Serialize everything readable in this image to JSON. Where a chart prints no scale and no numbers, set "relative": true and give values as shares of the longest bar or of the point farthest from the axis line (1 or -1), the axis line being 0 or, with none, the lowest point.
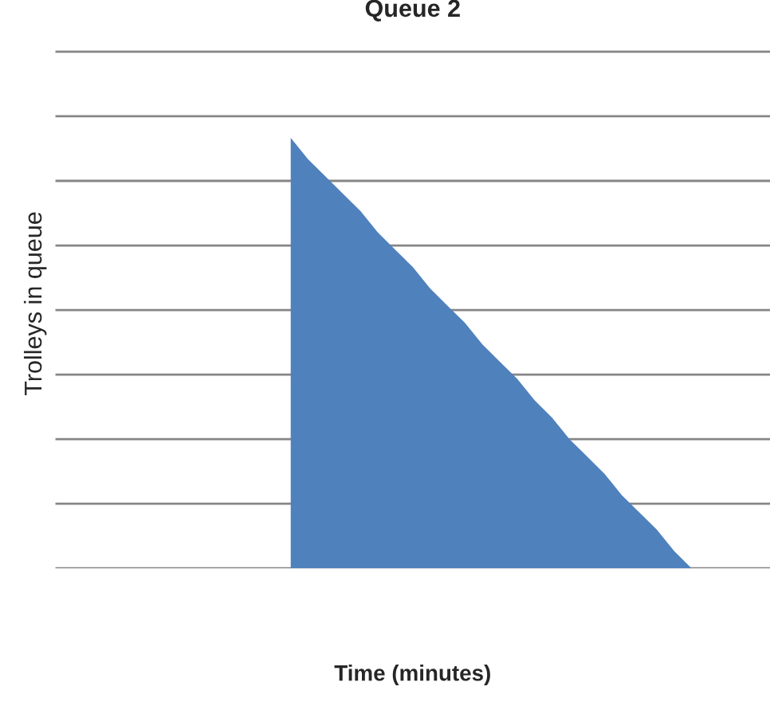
{
  "chart_data": {
    "type": "area",
    "title": "Queue 2",
    "xlabel": "Time (minutes)",
    "ylabel": "Trolleys in queue",
    "relative": true,
    "grid": "y",
    "legend": false,
    "categories": [
      null,
      null,
      null,
      null,
      null,
      null,
      null,
      null,
      null,
      null,
      null,
      null,
      null,
      null,
      null,
      null,
      null,
      null,
      null,
      null,
      null,
      null,
      null,
      null,
      null,
      null,
      null,
      null,
      null,
      null,
      null,
      null,
      null,
      null,
      null,
      null,
      null,
      null,
      null,
      null,
      null
    ],
    "series": [
      {
        "color": "#4f81bd",
        "values": [
          null,
          null,
          null,
          null,
          null,
          null,
          null,
          null,
          null,
          null,
          null,
          null,
          null,
          1.0,
          0.95,
          0.91,
          0.87,
          0.83,
          0.78,
          0.74,
          0.7,
          0.65,
          0.61,
          0.57,
          0.52,
          0.48,
          0.44,
          0.39,
          0.35,
          0.3,
          0.26,
          0.22,
          0.17,
          0.13,
          0.09,
          0.04,
          0.0,
          null,
          null,
          null,
          null
        ]
      }
    ]
  }
}
